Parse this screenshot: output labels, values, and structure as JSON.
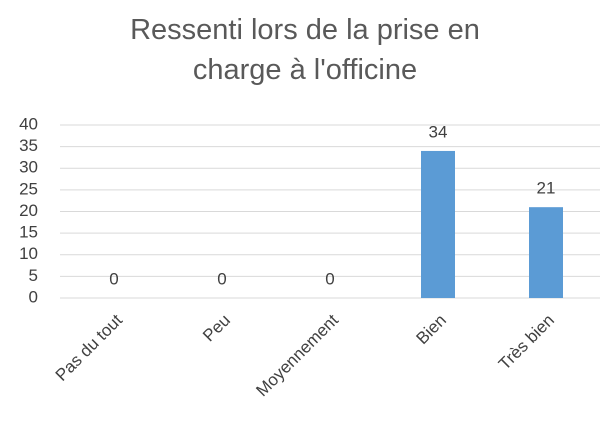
{
  "chart_data": {
    "type": "bar",
    "title": "Ressenti lors de la prise en charge à l'officine",
    "categories": [
      "Pas du tout",
      "Peu",
      "Moyennement",
      "Bien",
      "Très bien"
    ],
    "values": [
      0,
      0,
      0,
      34,
      21
    ],
    "color": "#5b9bd5",
    "ylim": [
      0,
      40
    ],
    "yticks": [
      0,
      5,
      10,
      15,
      20,
      25,
      30,
      35,
      40
    ],
    "grid": true
  }
}
